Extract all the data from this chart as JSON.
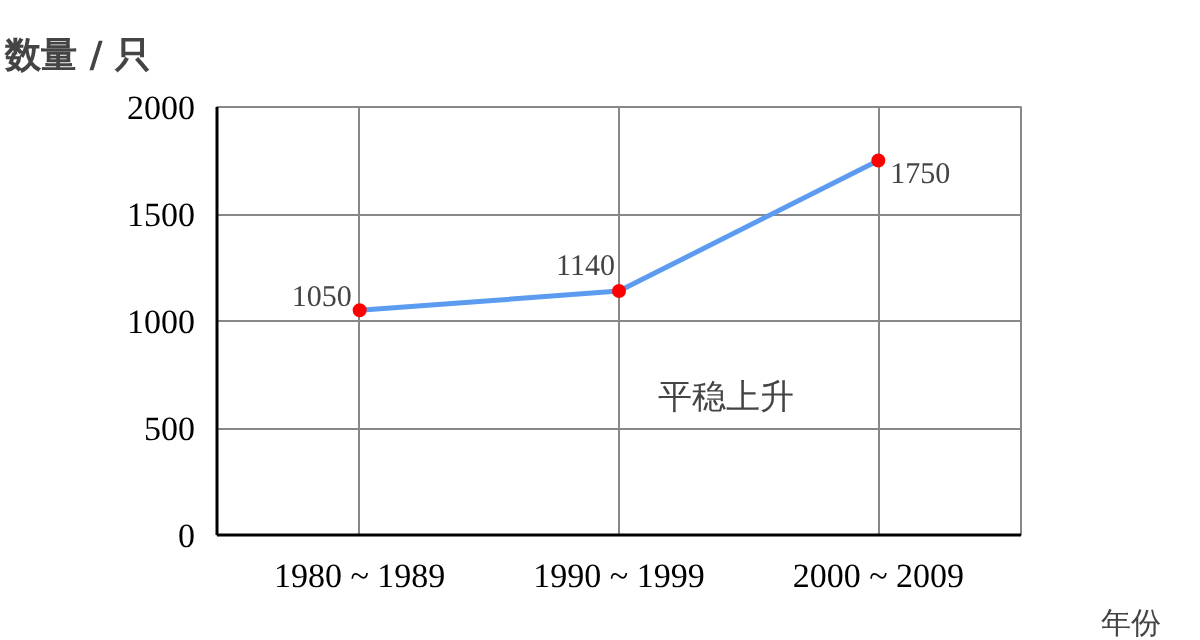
{
  "chart_data": {
    "type": "line",
    "xlabel": "年份",
    "ylabel": "数量 / 只",
    "categories": [
      "1980 ~ 1989",
      "1990 ~ 1999",
      "2000 ~ 2009"
    ],
    "series": [
      {
        "color": "#5b9bf0",
        "values": [
          1050,
          1140,
          1750
        ]
      }
    ],
    "ylim": [
      0,
      2000
    ],
    "yticks": [
      0,
      500,
      1000,
      1500,
      2000
    ],
    "grid": true,
    "marker": "circle",
    "line_style": "solid",
    "data_labels": true,
    "annotations": [
      "平稳上升"
    ]
  }
}
